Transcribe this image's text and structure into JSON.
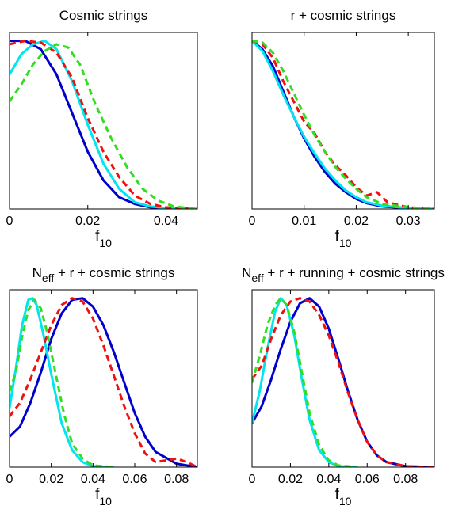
{
  "colors": {
    "blue": "#0000cc",
    "cyan": "#00e5ee",
    "red": "#ee1111",
    "green": "#33dd22"
  },
  "chart_data": [
    {
      "type": "line",
      "title": "Cosmic strings",
      "xlabel": "f_10",
      "xlim": [
        0,
        0.048
      ],
      "ylim": [
        0,
        1.05
      ],
      "xticks": [
        "0",
        "0.02",
        "0.04"
      ],
      "xtick_values": [
        0,
        0.02,
        0.04
      ],
      "yticks": [],
      "series": [
        {
          "color": "blue",
          "style": "solid",
          "x": [
            0,
            0.004,
            0.008,
            0.012,
            0.016,
            0.02,
            0.024,
            0.028,
            0.032,
            0.036,
            0.04,
            0.044,
            0.048
          ],
          "y": [
            1.0,
            1.0,
            0.95,
            0.8,
            0.57,
            0.34,
            0.17,
            0.07,
            0.03,
            0.01,
            0.005,
            0.002,
            0.0
          ]
        },
        {
          "color": "cyan",
          "style": "solid",
          "x": [
            0,
            0.003,
            0.006,
            0.009,
            0.012,
            0.016,
            0.02,
            0.024,
            0.028,
            0.032,
            0.036,
            0.04,
            0.048
          ],
          "y": [
            0.8,
            0.92,
            0.98,
            1.0,
            0.95,
            0.76,
            0.5,
            0.27,
            0.12,
            0.04,
            0.015,
            0.005,
            0.0
          ]
        },
        {
          "color": "red",
          "style": "dashed",
          "x": [
            0,
            0.004,
            0.008,
            0.012,
            0.016,
            0.02,
            0.024,
            0.028,
            0.032,
            0.036,
            0.04,
            0.044,
            0.048
          ],
          "y": [
            0.98,
            1.0,
            0.99,
            0.93,
            0.78,
            0.54,
            0.34,
            0.19,
            0.08,
            0.03,
            0.01,
            0.003,
            0.0
          ]
        },
        {
          "color": "green",
          "style": "dashed",
          "x": [
            0,
            0.003,
            0.006,
            0.009,
            0.012,
            0.015,
            0.018,
            0.022,
            0.026,
            0.03,
            0.034,
            0.038,
            0.042,
            0.048
          ],
          "y": [
            0.64,
            0.74,
            0.86,
            0.94,
            0.98,
            0.96,
            0.86,
            0.62,
            0.42,
            0.25,
            0.12,
            0.05,
            0.015,
            0.0
          ]
        }
      ]
    },
    {
      "type": "line",
      "title": "r + cosmic strings",
      "xlabel": "f_10",
      "xlim": [
        0,
        0.035
      ],
      "ylim": [
        0,
        1.05
      ],
      "xticks": [
        "0",
        "0.01",
        "0.02",
        "0.03"
      ],
      "xtick_values": [
        0,
        0.01,
        0.02,
        0.03
      ],
      "yticks": [],
      "series": [
        {
          "color": "blue",
          "style": "solid",
          "x": [
            0,
            0.002,
            0.004,
            0.006,
            0.008,
            0.01,
            0.012,
            0.014,
            0.016,
            0.018,
            0.02,
            0.022,
            0.025,
            0.03,
            0.035
          ],
          "y": [
            1.0,
            0.95,
            0.85,
            0.7,
            0.55,
            0.42,
            0.31,
            0.22,
            0.15,
            0.1,
            0.06,
            0.035,
            0.015,
            0.004,
            0.0
          ]
        },
        {
          "color": "cyan",
          "style": "solid",
          "x": [
            0,
            0.002,
            0.004,
            0.006,
            0.008,
            0.01,
            0.012,
            0.014,
            0.016,
            0.018,
            0.02,
            0.022,
            0.025,
            0.03,
            0.035
          ],
          "y": [
            1.0,
            0.94,
            0.82,
            0.68,
            0.55,
            0.43,
            0.33,
            0.24,
            0.17,
            0.11,
            0.07,
            0.04,
            0.02,
            0.005,
            0.0
          ]
        },
        {
          "color": "red",
          "style": "dashed",
          "x": [
            0,
            0.002,
            0.004,
            0.006,
            0.008,
            0.01,
            0.012,
            0.014,
            0.016,
            0.018,
            0.02,
            0.022,
            0.024,
            0.026,
            0.03,
            0.035
          ],
          "y": [
            1.0,
            0.98,
            0.9,
            0.76,
            0.64,
            0.52,
            0.45,
            0.34,
            0.26,
            0.2,
            0.13,
            0.08,
            0.1,
            0.04,
            0.01,
            0.0
          ]
        },
        {
          "color": "green",
          "style": "dashed",
          "x": [
            0,
            0.002,
            0.004,
            0.006,
            0.008,
            0.01,
            0.012,
            0.014,
            0.016,
            0.018,
            0.02,
            0.022,
            0.025,
            0.03,
            0.035
          ],
          "y": [
            1.0,
            0.99,
            0.93,
            0.82,
            0.69,
            0.56,
            0.44,
            0.34,
            0.25,
            0.18,
            0.12,
            0.07,
            0.03,
            0.01,
            0.0
          ]
        }
      ]
    },
    {
      "type": "line",
      "title": "N_eff + r + cosmic strings",
      "xlabel": "f_10",
      "xlim": [
        0,
        0.09
      ],
      "ylim": [
        0,
        1.05
      ],
      "xticks": [
        "0",
        "0.02",
        "0.04",
        "0.06",
        "0.08"
      ],
      "xtick_values": [
        0,
        0.02,
        0.04,
        0.06,
        0.08
      ],
      "yticks": [],
      "series": [
        {
          "color": "blue",
          "style": "solid",
          "x": [
            0,
            0.005,
            0.01,
            0.015,
            0.02,
            0.025,
            0.03,
            0.035,
            0.04,
            0.045,
            0.05,
            0.055,
            0.06,
            0.065,
            0.07,
            0.08,
            0.09
          ],
          "y": [
            0.18,
            0.24,
            0.38,
            0.56,
            0.76,
            0.91,
            0.99,
            1.0,
            0.95,
            0.84,
            0.68,
            0.5,
            0.32,
            0.18,
            0.09,
            0.02,
            0.0
          ]
        },
        {
          "color": "cyan",
          "style": "solid",
          "x": [
            0,
            0.003,
            0.006,
            0.009,
            0.011,
            0.013,
            0.016,
            0.02,
            0.025,
            0.03,
            0.035,
            0.04,
            0.05
          ],
          "y": [
            0.35,
            0.58,
            0.84,
            0.99,
            1.0,
            0.96,
            0.8,
            0.55,
            0.26,
            0.1,
            0.03,
            0.005,
            0.0
          ]
        },
        {
          "color": "red",
          "style": "dashed",
          "x": [
            0,
            0.005,
            0.01,
            0.015,
            0.02,
            0.025,
            0.03,
            0.035,
            0.04,
            0.045,
            0.05,
            0.055,
            0.06,
            0.065,
            0.07,
            0.075,
            0.08,
            0.085,
            0.09
          ],
          "y": [
            0.3,
            0.38,
            0.52,
            0.68,
            0.84,
            0.96,
            1.0,
            0.98,
            0.88,
            0.72,
            0.54,
            0.36,
            0.2,
            0.08,
            0.03,
            0.04,
            0.05,
            0.03,
            0.0
          ]
        },
        {
          "color": "green",
          "style": "dashed",
          "x": [
            0,
            0.003,
            0.006,
            0.009,
            0.012,
            0.015,
            0.018,
            0.022,
            0.026,
            0.03,
            0.035,
            0.04,
            0.05
          ],
          "y": [
            0.45,
            0.56,
            0.77,
            0.93,
            0.99,
            0.94,
            0.8,
            0.56,
            0.32,
            0.14,
            0.05,
            0.01,
            0.0
          ]
        }
      ]
    },
    {
      "type": "line",
      "title": "N_eff + r + running + cosmic strings",
      "xlabel": "f_10",
      "xlim": [
        0,
        0.095
      ],
      "ylim": [
        0,
        1.05
      ],
      "xticks": [
        "0",
        "0.02",
        "0.04",
        "0.06",
        "0.08"
      ],
      "xtick_values": [
        0,
        0.02,
        0.04,
        0.06,
        0.08
      ],
      "yticks": [],
      "series": [
        {
          "color": "blue",
          "style": "solid",
          "x": [
            0,
            0.005,
            0.01,
            0.015,
            0.02,
            0.025,
            0.03,
            0.035,
            0.04,
            0.045,
            0.05,
            0.055,
            0.06,
            0.065,
            0.07,
            0.08,
            0.095
          ],
          "y": [
            0.26,
            0.36,
            0.52,
            0.7,
            0.86,
            0.97,
            1.0,
            0.95,
            0.82,
            0.64,
            0.45,
            0.28,
            0.15,
            0.07,
            0.03,
            0.005,
            0.0
          ]
        },
        {
          "color": "cyan",
          "style": "solid",
          "x": [
            0,
            0.004,
            0.008,
            0.012,
            0.015,
            0.018,
            0.022,
            0.026,
            0.03,
            0.035,
            0.04,
            0.045,
            0.055
          ],
          "y": [
            0.26,
            0.45,
            0.7,
            0.92,
            1.0,
            0.96,
            0.78,
            0.52,
            0.28,
            0.1,
            0.03,
            0.005,
            0.0
          ]
        },
        {
          "color": "red",
          "style": "dashed",
          "x": [
            0,
            0.005,
            0.01,
            0.015,
            0.02,
            0.025,
            0.03,
            0.035,
            0.04,
            0.045,
            0.05,
            0.055,
            0.06,
            0.065,
            0.07,
            0.08,
            0.095
          ],
          "y": [
            0.52,
            0.6,
            0.76,
            0.9,
            0.98,
            1.0,
            0.98,
            0.9,
            0.78,
            0.62,
            0.44,
            0.28,
            0.15,
            0.07,
            0.03,
            0.005,
            0.0
          ]
        },
        {
          "color": "green",
          "style": "dashed",
          "x": [
            0,
            0.004,
            0.008,
            0.012,
            0.015,
            0.018,
            0.022,
            0.026,
            0.03,
            0.035,
            0.04,
            0.045,
            0.055
          ],
          "y": [
            0.5,
            0.66,
            0.84,
            0.96,
            1.0,
            0.96,
            0.8,
            0.56,
            0.32,
            0.13,
            0.04,
            0.01,
            0.0
          ]
        }
      ]
    }
  ]
}
